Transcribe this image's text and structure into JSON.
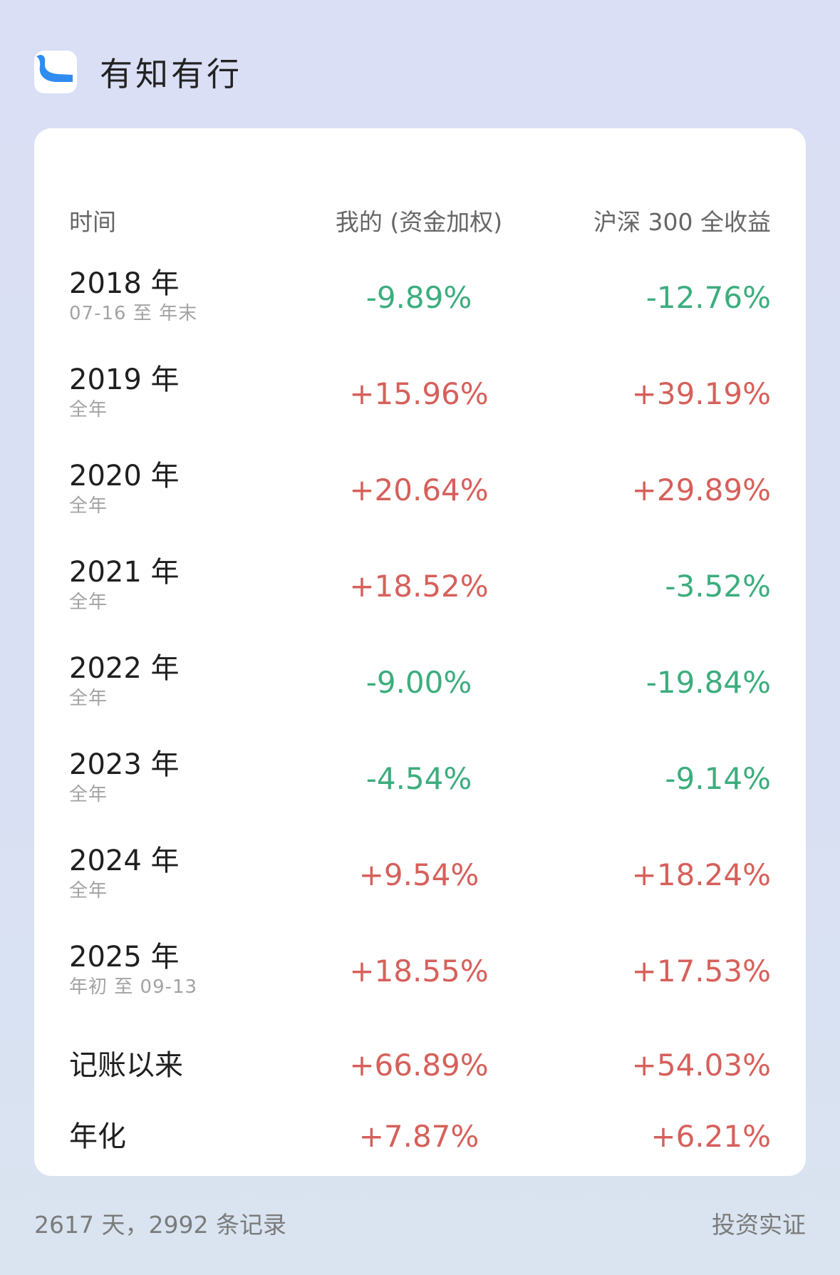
{
  "app": {
    "title": "有知有行",
    "logo_icon": "river-logo-icon",
    "logo_color": "#2f8df0"
  },
  "table": {
    "headers": {
      "period": "时间",
      "mine": "我的 (资金加权)",
      "benchmark": "沪深 300 全收益"
    },
    "rows": [
      {
        "year": "2018 年",
        "range": "07-16 至 年末",
        "mine": "-9.89%",
        "mine_sign": "neg",
        "benchmark": "-12.76%",
        "benchmark_sign": "neg"
      },
      {
        "year": "2019 年",
        "range": "全年",
        "mine": "+15.96%",
        "mine_sign": "pos",
        "benchmark": "+39.19%",
        "benchmark_sign": "pos"
      },
      {
        "year": "2020 年",
        "range": "全年",
        "mine": "+20.64%",
        "mine_sign": "pos",
        "benchmark": "+29.89%",
        "benchmark_sign": "pos"
      },
      {
        "year": "2021 年",
        "range": "全年",
        "mine": "+18.52%",
        "mine_sign": "pos",
        "benchmark": "-3.52%",
        "benchmark_sign": "neg"
      },
      {
        "year": "2022 年",
        "range": "全年",
        "mine": "-9.00%",
        "mine_sign": "neg",
        "benchmark": "-19.84%",
        "benchmark_sign": "neg"
      },
      {
        "year": "2023 年",
        "range": "全年",
        "mine": "-4.54%",
        "mine_sign": "neg",
        "benchmark": "-9.14%",
        "benchmark_sign": "neg"
      },
      {
        "year": "2024 年",
        "range": "全年",
        "mine": "+9.54%",
        "mine_sign": "pos",
        "benchmark": "+18.24%",
        "benchmark_sign": "pos"
      },
      {
        "year": "2025 年",
        "range": "年初 至 09-13",
        "mine": "+18.55%",
        "mine_sign": "pos",
        "benchmark": "+17.53%",
        "benchmark_sign": "pos"
      }
    ],
    "summary": [
      {
        "label": "记账以来",
        "mine": "+66.89%",
        "mine_sign": "pos",
        "benchmark": "+54.03%",
        "benchmark_sign": "pos"
      },
      {
        "label": "年化",
        "mine": "+7.87%",
        "mine_sign": "pos",
        "benchmark": "+6.21%",
        "benchmark_sign": "pos"
      }
    ]
  },
  "footer": {
    "stats": "2617 天，2992 条记录",
    "brand": "投资实证"
  },
  "colors": {
    "positive": "#d6605b",
    "negative": "#3cad7e"
  }
}
